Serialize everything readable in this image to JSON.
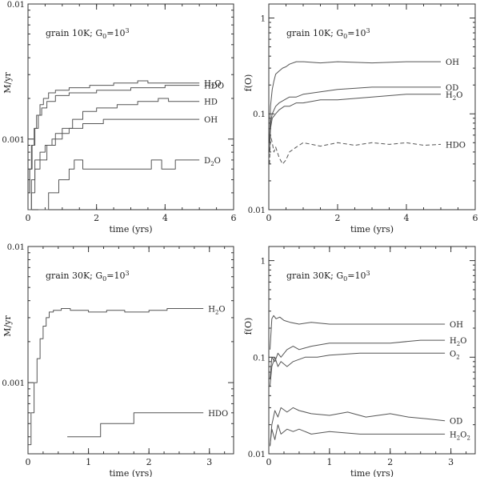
{
  "chart_data": [
    {
      "type": "line",
      "ylabel": "M/yr",
      "xlabel": "time (yrs)",
      "annotation": {
        "main": "grain 10K; G",
        "sub": "0",
        "mid": "=10",
        "sup": "3"
      },
      "xlim": [
        0,
        6
      ],
      "ylim": [
        0.0003,
        0.01
      ],
      "yscale": "log",
      "xticks": [
        "0",
        "2",
        "4",
        "6"
      ],
      "yticks": [
        {
          "v": 0.001,
          "label": "0.001"
        },
        {
          "v": 0.01,
          "label": "0.01"
        }
      ],
      "series": [
        {
          "name": "H2O",
          "label_main": "H",
          "label_sub": "2",
          "label_tail": "O",
          "step": true,
          "dash": false,
          "x": [
            0,
            0.05,
            0.1,
            0.18,
            0.25,
            0.35,
            0.45,
            0.6,
            0.8,
            1.2,
            1.8,
            2.5,
            3.2,
            3.5,
            4.0,
            5.0
          ],
          "y": [
            0.0004,
            0.0006,
            0.0009,
            0.0012,
            0.0015,
            0.0018,
            0.002,
            0.0022,
            0.0023,
            0.0024,
            0.0025,
            0.0026,
            0.0027,
            0.0026,
            0.0026,
            0.0026
          ]
        },
        {
          "name": "HDO",
          "label_main": "HDO",
          "label_sub": "",
          "label_tail": "",
          "step": true,
          "dash": false,
          "x": [
            0,
            0.05,
            0.12,
            0.2,
            0.3,
            0.4,
            0.55,
            0.8,
            1.2,
            2.0,
            3.0,
            4.0,
            5.0
          ],
          "y": [
            0.0004,
            0.0006,
            0.0009,
            0.0012,
            0.0015,
            0.0017,
            0.0019,
            0.0021,
            0.0022,
            0.0023,
            0.0024,
            0.0025,
            0.0025
          ]
        },
        {
          "name": "HD",
          "label_main": "HD",
          "label_sub": "",
          "label_tail": "",
          "step": true,
          "dash": false,
          "x": [
            0,
            0.1,
            0.2,
            0.35,
            0.5,
            0.7,
            1.0,
            1.3,
            1.6,
            2.0,
            2.6,
            3.2,
            3.8,
            4.1,
            5.0
          ],
          "y": [
            0.0003,
            0.0005,
            0.0007,
            0.0008,
            0.0009,
            0.001,
            0.0012,
            0.0014,
            0.0016,
            0.0017,
            0.0018,
            0.0019,
            0.002,
            0.0019,
            0.0019
          ]
        },
        {
          "name": "OH",
          "label_main": "OH",
          "label_sub": "",
          "label_tail": "",
          "step": true,
          "dash": false,
          "x": [
            0,
            0.1,
            0.2,
            0.35,
            0.55,
            0.8,
            1.2,
            1.6,
            2.2,
            5.0
          ],
          "y": [
            0.0003,
            0.0004,
            0.0006,
            0.0007,
            0.0009,
            0.0011,
            0.0012,
            0.0013,
            0.0014,
            0.0014
          ]
        },
        {
          "name": "D2O",
          "label_main": "D",
          "label_sub": "2",
          "label_tail": "O",
          "step": true,
          "dash": false,
          "x": [
            0.3,
            0.6,
            0.9,
            1.2,
            1.35,
            1.6,
            3.2,
            3.6,
            3.9,
            4.3,
            5.0
          ],
          "y": [
            0.0003,
            0.0004,
            0.0005,
            0.0006,
            0.0007,
            0.0006,
            0.0006,
            0.0007,
            0.0006,
            0.0007,
            0.0007
          ]
        }
      ]
    },
    {
      "type": "line",
      "ylabel": "f(O)",
      "xlabel": "time (yrs)",
      "annotation": {
        "main": "grain 10K; G",
        "sub": "0",
        "mid": "=10",
        "sup": "3"
      },
      "xlim": [
        0,
        6
      ],
      "ylim": [
        0.01,
        1.4
      ],
      "yscale": "log",
      "xticks": [
        "0",
        "2",
        "4",
        "6"
      ],
      "yticks": [
        {
          "v": 0.01,
          "label": "0.01"
        },
        {
          "v": 0.1,
          "label": "0.1"
        },
        {
          "v": 1,
          "label": "1"
        }
      ],
      "series": [
        {
          "name": "OH",
          "label_main": "OH",
          "label_sub": "",
          "label_tail": "",
          "step": false,
          "dash": false,
          "x": [
            0.02,
            0.05,
            0.1,
            0.15,
            0.2,
            0.3,
            0.4,
            0.5,
            0.6,
            0.8,
            1.0,
            1.5,
            2.0,
            3.0,
            4.0,
            5.0
          ],
          "y": [
            0.05,
            0.12,
            0.18,
            0.22,
            0.26,
            0.28,
            0.3,
            0.31,
            0.33,
            0.35,
            0.35,
            0.34,
            0.35,
            0.34,
            0.35,
            0.35
          ]
        },
        {
          "name": "OD",
          "label_main": "OD",
          "label_sub": "",
          "label_tail": "",
          "step": false,
          "dash": false,
          "x": [
            0.02,
            0.05,
            0.1,
            0.2,
            0.3,
            0.45,
            0.6,
            0.8,
            1.0,
            1.5,
            2.0,
            3.0,
            4.0,
            5.0
          ],
          "y": [
            0.05,
            0.08,
            0.1,
            0.12,
            0.13,
            0.14,
            0.15,
            0.15,
            0.16,
            0.17,
            0.18,
            0.19,
            0.19,
            0.19
          ]
        },
        {
          "name": "H2O",
          "label_main": "H",
          "label_sub": "2",
          "label_tail": "O",
          "step": false,
          "dash": false,
          "x": [
            0.02,
            0.05,
            0.1,
            0.2,
            0.3,
            0.45,
            0.6,
            0.8,
            1.0,
            1.5,
            2.0,
            3.0,
            4.0,
            5.0
          ],
          "y": [
            0.04,
            0.07,
            0.09,
            0.1,
            0.11,
            0.12,
            0.12,
            0.13,
            0.13,
            0.14,
            0.14,
            0.15,
            0.16,
            0.16
          ]
        },
        {
          "name": "HDO",
          "label_main": "HDO",
          "label_sub": "",
          "label_tail": "",
          "step": false,
          "dash": true,
          "x": [
            0.02,
            0.05,
            0.1,
            0.15,
            0.2,
            0.3,
            0.4,
            0.5,
            0.6,
            0.8,
            1.0,
            1.5,
            2.0,
            2.5,
            3.0,
            3.5,
            4.0,
            4.5,
            5.0
          ],
          "y": [
            0.03,
            0.06,
            0.05,
            0.04,
            0.045,
            0.035,
            0.03,
            0.033,
            0.04,
            0.045,
            0.05,
            0.046,
            0.05,
            0.047,
            0.05,
            0.048,
            0.05,
            0.047,
            0.048
          ]
        }
      ]
    },
    {
      "type": "line",
      "ylabel": "M/yr",
      "xlabel": "time (yrs)",
      "annotation": {
        "main": "grain 30K; G",
        "sub": "0",
        "mid": "=10",
        "sup": "3"
      },
      "xlim": [
        0,
        3.4
      ],
      "ylim": [
        0.0003,
        0.01
      ],
      "yscale": "log",
      "xticks": [
        "0",
        "1",
        "2",
        "3"
      ],
      "yticks": [
        {
          "v": 0.001,
          "label": "0.001"
        },
        {
          "v": 0.01,
          "label": "0.01"
        }
      ],
      "series": [
        {
          "name": "H2O",
          "label_main": "H",
          "label_sub": "2",
          "label_tail": "O",
          "step": true,
          "dash": false,
          "x": [
            0,
            0.05,
            0.1,
            0.15,
            0.2,
            0.25,
            0.3,
            0.35,
            0.42,
            0.55,
            0.7,
            1.0,
            1.3,
            1.6,
            2.0,
            2.3,
            2.6,
            2.9
          ],
          "y": [
            0.00035,
            0.0006,
            0.001,
            0.0015,
            0.0021,
            0.0026,
            0.003,
            0.0033,
            0.0034,
            0.0035,
            0.0034,
            0.0033,
            0.0034,
            0.0033,
            0.0034,
            0.0035,
            0.0035,
            0.0035
          ]
        },
        {
          "name": "HDO",
          "label_main": "HDO",
          "label_sub": "",
          "label_tail": "",
          "step": true,
          "dash": false,
          "x": [
            0.65,
            1.2,
            1.75,
            2.9
          ],
          "y": [
            0.0004,
            0.0005,
            0.0006,
            0.0006
          ]
        }
      ]
    },
    {
      "type": "line",
      "ylabel": "f(O)",
      "xlabel": "time (yrs)",
      "annotation": {
        "main": "grain 30K; G",
        "sub": "0",
        "mid": "=10",
        "sup": "3"
      },
      "xlim": [
        0,
        3.4
      ],
      "ylim": [
        0.01,
        1.4
      ],
      "yscale": "log",
      "xticks": [
        "0",
        "1",
        "2",
        "3"
      ],
      "yticks": [
        {
          "v": 0.01,
          "label": "0.01"
        },
        {
          "v": 0.1,
          "label": "0.1"
        },
        {
          "v": 1,
          "label": "1"
        }
      ],
      "series": [
        {
          "name": "OH",
          "label_main": "OH",
          "label_sub": "",
          "label_tail": "",
          "step": false,
          "dash": false,
          "x": [
            0.02,
            0.05,
            0.08,
            0.12,
            0.18,
            0.25,
            0.35,
            0.5,
            0.7,
            1.0,
            1.5,
            2.0,
            2.5,
            2.9
          ],
          "y": [
            0.12,
            0.25,
            0.27,
            0.25,
            0.26,
            0.24,
            0.23,
            0.22,
            0.23,
            0.22,
            0.22,
            0.22,
            0.22,
            0.22
          ]
        },
        {
          "name": "H2O",
          "label_main": "H",
          "label_sub": "2",
          "label_tail": "O",
          "step": false,
          "dash": false,
          "x": [
            0.02,
            0.05,
            0.1,
            0.15,
            0.2,
            0.3,
            0.4,
            0.5,
            0.7,
            1.0,
            1.5,
            2.0,
            2.5,
            2.9
          ],
          "y": [
            0.06,
            0.1,
            0.09,
            0.11,
            0.1,
            0.12,
            0.13,
            0.12,
            0.13,
            0.14,
            0.14,
            0.14,
            0.15,
            0.15
          ]
        },
        {
          "name": "O2",
          "label_main": "O",
          "label_sub": "2",
          "label_tail": "",
          "step": false,
          "dash": false,
          "x": [
            0.02,
            0.05,
            0.1,
            0.15,
            0.2,
            0.3,
            0.4,
            0.6,
            0.8,
            1.0,
            1.5,
            2.0,
            2.5,
            2.9
          ],
          "y": [
            0.05,
            0.08,
            0.1,
            0.08,
            0.09,
            0.08,
            0.09,
            0.1,
            0.1,
            0.105,
            0.11,
            0.11,
            0.11,
            0.11
          ]
        },
        {
          "name": "OD",
          "label_main": "OD",
          "label_sub": "",
          "label_tail": "",
          "step": false,
          "dash": false,
          "x": [
            0.02,
            0.05,
            0.1,
            0.15,
            0.2,
            0.3,
            0.4,
            0.5,
            0.7,
            1.0,
            1.3,
            1.6,
            2.0,
            2.3,
            2.6,
            2.9
          ],
          "y": [
            0.012,
            0.02,
            0.028,
            0.024,
            0.03,
            0.027,
            0.03,
            0.028,
            0.026,
            0.025,
            0.027,
            0.024,
            0.026,
            0.024,
            0.023,
            0.022
          ]
        },
        {
          "name": "H2O2",
          "label_main": "H",
          "label_sub": "2",
          "label_tail": "O",
          "label_sub2": "2",
          "step": false,
          "dash": false,
          "x": [
            0.02,
            0.05,
            0.1,
            0.15,
            0.2,
            0.3,
            0.4,
            0.5,
            0.7,
            1.0,
            1.5,
            2.0,
            2.5,
            2.9
          ],
          "y": [
            0.012,
            0.018,
            0.014,
            0.02,
            0.016,
            0.018,
            0.017,
            0.018,
            0.016,
            0.017,
            0.016,
            0.016,
            0.016,
            0.016
          ]
        }
      ]
    }
  ]
}
